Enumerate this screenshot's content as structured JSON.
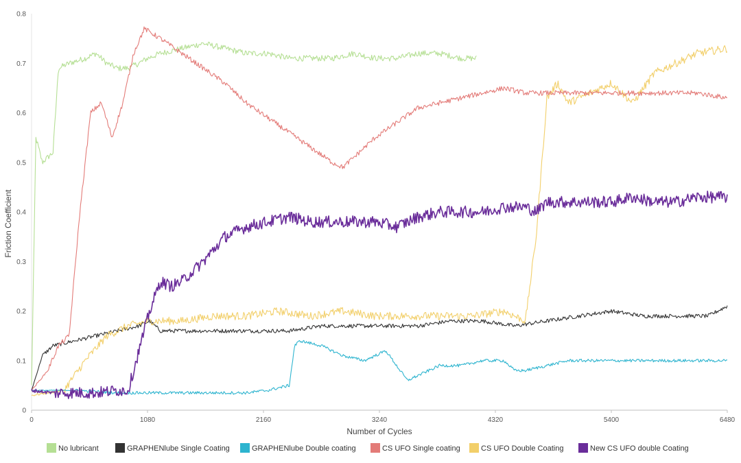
{
  "chart_data": {
    "type": "line",
    "title": "",
    "xlabel": "Number of Cycles",
    "ylabel": "Friction Coefficient",
    "xlim": [
      0,
      6480
    ],
    "ylim": [
      0,
      0.8
    ],
    "grid": false,
    "legend_position": "bottom",
    "x_ticks": [
      0,
      1080,
      2160,
      3240,
      4320,
      5400,
      6480
    ],
    "x_tick_labels": [
      "0",
      "1080",
      "2160",
      "3240",
      "4320",
      "5400",
      "6480"
    ],
    "y_ticks": [
      0,
      0.1,
      0.2,
      0.3,
      0.4,
      0.5,
      0.6,
      0.7,
      0.8
    ],
    "y_tick_labels": [
      "0",
      "0.1",
      "0.2",
      "0.3",
      "0.4",
      "0.5",
      "0.6",
      "0.7",
      "0.8"
    ],
    "series": [
      {
        "name": "No lubricant",
        "color": "#b5df94",
        "noise": 0.006,
        "x": [
          0,
          40,
          100,
          200,
          250,
          350,
          500,
          600,
          700,
          800,
          900,
          1000,
          1080,
          1200,
          1400,
          1600,
          1800,
          2000,
          2200,
          2400,
          2600,
          2800,
          3000,
          3200,
          3400,
          3600,
          3800,
          4000,
          4150
        ],
        "y": [
          0.05,
          0.55,
          0.5,
          0.52,
          0.69,
          0.7,
          0.71,
          0.72,
          0.7,
          0.69,
          0.69,
          0.7,
          0.71,
          0.72,
          0.73,
          0.74,
          0.73,
          0.72,
          0.72,
          0.71,
          0.71,
          0.71,
          0.72,
          0.71,
          0.71,
          0.72,
          0.72,
          0.71,
          0.71
        ]
      },
      {
        "name": "GRAPHENlube Single Coating",
        "color": "#333333",
        "noise": 0.004,
        "x": [
          0,
          100,
          200,
          400,
          600,
          800,
          1000,
          1100,
          1200,
          1500,
          1800,
          2100,
          2400,
          2700,
          3000,
          3300,
          3600,
          3900,
          4200,
          4500,
          4800,
          5100,
          5400,
          5700,
          6000,
          6300,
          6480
        ],
        "y": [
          0.04,
          0.11,
          0.13,
          0.14,
          0.15,
          0.16,
          0.17,
          0.18,
          0.16,
          0.16,
          0.16,
          0.16,
          0.16,
          0.17,
          0.17,
          0.17,
          0.17,
          0.18,
          0.18,
          0.17,
          0.18,
          0.19,
          0.2,
          0.19,
          0.19,
          0.19,
          0.21
        ]
      },
      {
        "name": "GRAPHENlube Double coating",
        "color": "#2db4cf",
        "noise": 0.003,
        "x": [
          0,
          400,
          800,
          1200,
          1600,
          2000,
          2200,
          2400,
          2450,
          2500,
          2700,
          2900,
          3100,
          3300,
          3500,
          3600,
          3800,
          4000,
          4200,
          4400,
          4500,
          4600,
          4800,
          5000,
          5400,
          5800,
          6200,
          6480
        ],
        "y": [
          0.04,
          0.04,
          0.035,
          0.035,
          0.035,
          0.035,
          0.04,
          0.05,
          0.13,
          0.14,
          0.13,
          0.11,
          0.1,
          0.12,
          0.06,
          0.07,
          0.09,
          0.09,
          0.1,
          0.1,
          0.08,
          0.08,
          0.09,
          0.1,
          0.1,
          0.1,
          0.1,
          0.1
        ]
      },
      {
        "name": "CS UFO Single coating",
        "color": "#e37b78",
        "noise": 0.005,
        "x": [
          0,
          150,
          250,
          350,
          450,
          550,
          650,
          750,
          850,
          950,
          1050,
          1200,
          1400,
          1600,
          1800,
          2000,
          2200,
          2400,
          2600,
          2800,
          2900,
          3000,
          3200,
          3400,
          3600,
          3800,
          4000,
          4200,
          4400,
          4600,
          4800,
          5000,
          5200,
          5400,
          5600,
          5800,
          6000,
          6200,
          6480
        ],
        "y": [
          0.04,
          0.08,
          0.13,
          0.15,
          0.4,
          0.6,
          0.62,
          0.55,
          0.62,
          0.72,
          0.77,
          0.75,
          0.72,
          0.69,
          0.66,
          0.62,
          0.59,
          0.56,
          0.53,
          0.5,
          0.49,
          0.51,
          0.55,
          0.58,
          0.61,
          0.62,
          0.63,
          0.64,
          0.65,
          0.64,
          0.64,
          0.64,
          0.64,
          0.64,
          0.64,
          0.64,
          0.64,
          0.64,
          0.63
        ]
      },
      {
        "name": "CS UFO Double Coating",
        "color": "#f2cf6a",
        "noise": 0.008,
        "x": [
          0,
          300,
          500,
          700,
          900,
          1100,
          1400,
          1700,
          2000,
          2300,
          2600,
          2900,
          3200,
          3500,
          3800,
          4100,
          4400,
          4600,
          4700,
          4800,
          4900,
          5000,
          5200,
          5400,
          5600,
          5800,
          6000,
          6200,
          6480
        ],
        "y": [
          0.03,
          0.04,
          0.1,
          0.15,
          0.17,
          0.18,
          0.18,
          0.19,
          0.19,
          0.2,
          0.19,
          0.2,
          0.19,
          0.19,
          0.19,
          0.19,
          0.2,
          0.18,
          0.35,
          0.63,
          0.66,
          0.62,
          0.64,
          0.66,
          0.62,
          0.68,
          0.7,
          0.72,
          0.73
        ]
      },
      {
        "name": "New CS UFO double Coating",
        "color": "#6a2d9a",
        "noise": 0.012,
        "x": [
          0,
          200,
          400,
          600,
          800,
          900,
          1000,
          1100,
          1200,
          1300,
          1400,
          1600,
          1800,
          2000,
          2200,
          2400,
          2600,
          2800,
          3000,
          3200,
          3400,
          3600,
          3800,
          4000,
          4200,
          4400,
          4600,
          4700,
          4800,
          5000,
          5200,
          5400,
          5600,
          5800,
          6000,
          6200,
          6480
        ],
        "y": [
          0.04,
          0.035,
          0.035,
          0.035,
          0.04,
          0.04,
          0.12,
          0.2,
          0.26,
          0.25,
          0.26,
          0.3,
          0.35,
          0.37,
          0.38,
          0.39,
          0.38,
          0.38,
          0.38,
          0.38,
          0.37,
          0.39,
          0.4,
          0.4,
          0.4,
          0.41,
          0.41,
          0.4,
          0.42,
          0.42,
          0.42,
          0.42,
          0.43,
          0.42,
          0.42,
          0.43,
          0.43
        ]
      }
    ]
  }
}
